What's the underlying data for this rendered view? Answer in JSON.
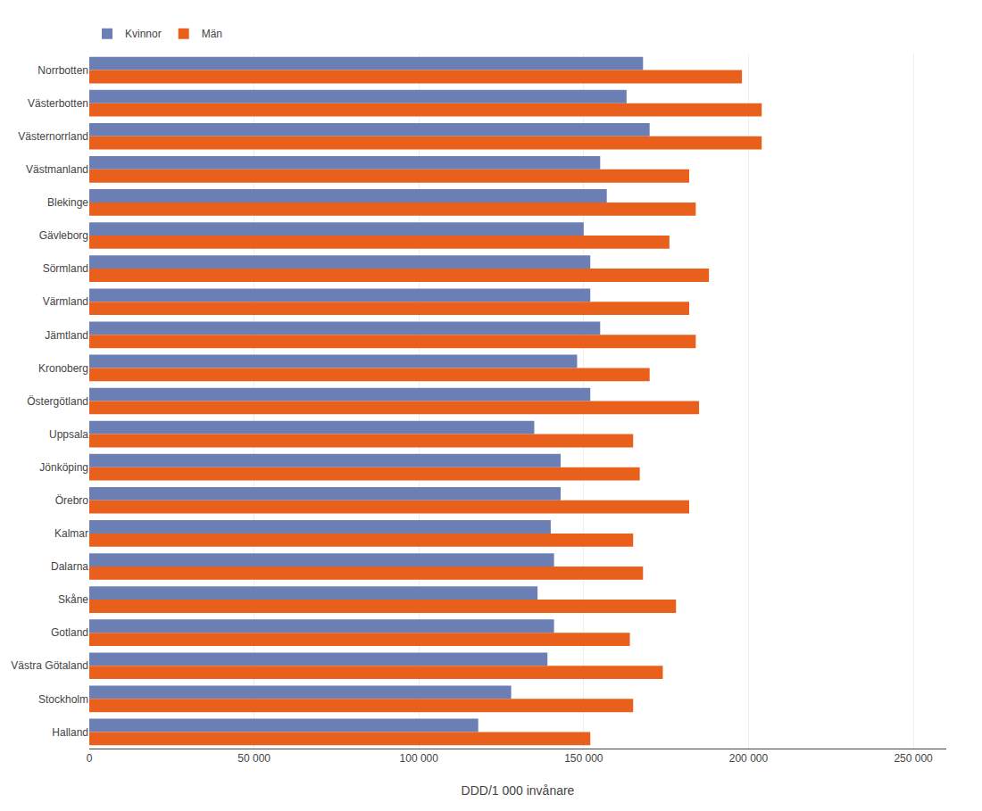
{
  "chart_data": {
    "type": "bar",
    "orientation": "horizontal",
    "categories": [
      "Norrbotten",
      "Västerbotten",
      "Västernorrland",
      "Västmanland",
      "Blekinge",
      "Gävleborg",
      "Sörmland",
      "Värmland",
      "Jämtland",
      "Kronoberg",
      "Östergötland",
      "Uppsala",
      "Jönköping",
      "Örebro",
      "Kalmar",
      "Dalarna",
      "Skåne",
      "Gotland",
      "Västra Götaland",
      "Stockholm",
      "Halland"
    ],
    "series": [
      {
        "name": "Kvinnor",
        "color": "#6b7fb5",
        "values": [
          168000,
          163000,
          170000,
          155000,
          157000,
          150000,
          152000,
          152000,
          155000,
          148000,
          152000,
          135000,
          143000,
          143000,
          140000,
          141000,
          136000,
          141000,
          139000,
          128000,
          118000
        ]
      },
      {
        "name": "Män",
        "color": "#e8601c",
        "values": [
          198000,
          204000,
          204000,
          182000,
          184000,
          176000,
          188000,
          182000,
          184000,
          170000,
          185000,
          165000,
          167000,
          182000,
          165000,
          168000,
          178000,
          164000,
          174000,
          165000,
          152000
        ]
      }
    ],
    "xlabel": "DDD/1 000 invånare",
    "xlim": [
      0,
      260000
    ],
    "xticks": [
      0,
      {
        "value": 50000,
        "label": "50 000"
      },
      {
        "value": 100000,
        "label": "100 000"
      },
      {
        "value": 150000,
        "label": "150 000"
      },
      {
        "value": 200000,
        "label": "200 000"
      },
      {
        "value": 250000,
        "label": "250 000"
      }
    ],
    "grid": true,
    "legend": "upper left"
  }
}
